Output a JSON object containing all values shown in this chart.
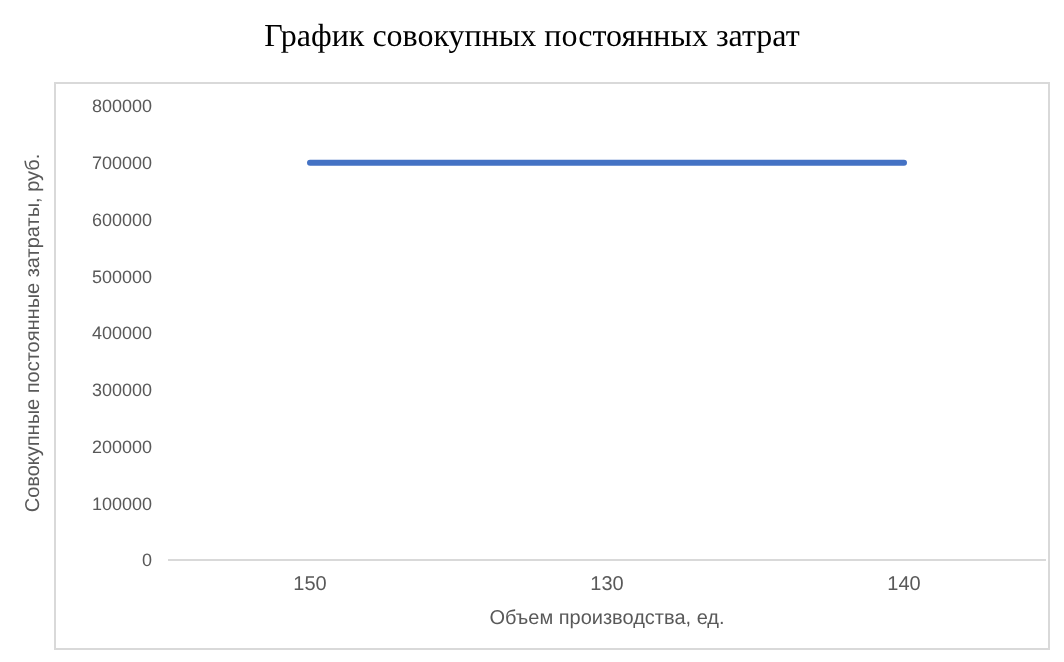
{
  "chart_data": {
    "type": "line",
    "title": "График совокупных постоянных затрат",
    "xlabel": "Объем производства, ед.",
    "ylabel": "Совокупные постоянные затраты, руб.",
    "categories": [
      "150",
      "130",
      "140"
    ],
    "series": [
      {
        "color": "#4472c4",
        "values": [
          700000,
          700000,
          700000
        ]
      }
    ],
    "ylim": [
      0,
      800000
    ],
    "yticks": [
      0,
      100000,
      200000,
      300000,
      400000,
      500000,
      600000,
      700000,
      800000
    ],
    "grid": false,
    "legend": false,
    "marker": "none",
    "line_style": "solid"
  }
}
